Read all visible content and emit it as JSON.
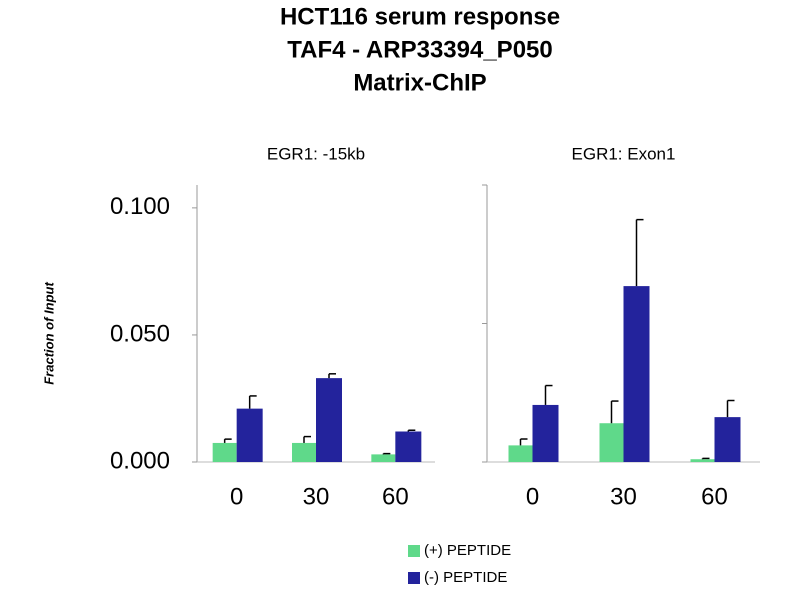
{
  "title": [
    "HCT116 serum response",
    "TAF4 - ARP33394_P050",
    "Matrix-ChIP"
  ],
  "chart_data": [
    {
      "type": "bar",
      "title": "EGR1: -15kb",
      "ylabel": "Fraction of Input",
      "categories": [
        "0",
        "30",
        "60"
      ],
      "series": [
        {
          "name": "(+) PEPTIDE",
          "color": "#5fd98a",
          "values": [
            0.0075,
            0.0075,
            0.003
          ],
          "errors": [
            0.0015,
            0.0025,
            0.0003
          ]
        },
        {
          "name": "(-) PEPTIDE",
          "color": "#23239c",
          "values": [
            0.021,
            0.033,
            0.012
          ],
          "errors": [
            0.005,
            0.0017,
            0.0005
          ]
        }
      ],
      "ylim": [
        0,
        0.109
      ],
      "yticks": [
        {
          "value": 0,
          "label": "0.000"
        },
        {
          "value": 0.05,
          "label": "0.050"
        },
        {
          "value": 0.1,
          "label": "0.100"
        }
      ],
      "show_ytick_labels": true
    },
    {
      "type": "bar",
      "title": "EGR1: Exon1",
      "categories": [
        "0",
        "30",
        "60"
      ],
      "series": [
        {
          "name": "(+) PEPTIDE",
          "color": "#5fd98a",
          "values": [
            0.006,
            0.014,
            0.001
          ],
          "errors": [
            0.0023,
            0.008,
            0.0003
          ]
        },
        {
          "name": "(-) PEPTIDE",
          "color": "#23239c",
          "values": [
            0.0206,
            0.0635,
            0.0162
          ],
          "errors": [
            0.007,
            0.024,
            0.006
          ]
        }
      ],
      "ylim": [
        0,
        0.1
      ],
      "yticks": [
        0,
        0.05,
        0.1
      ],
      "show_ytick_labels": false
    }
  ]
}
